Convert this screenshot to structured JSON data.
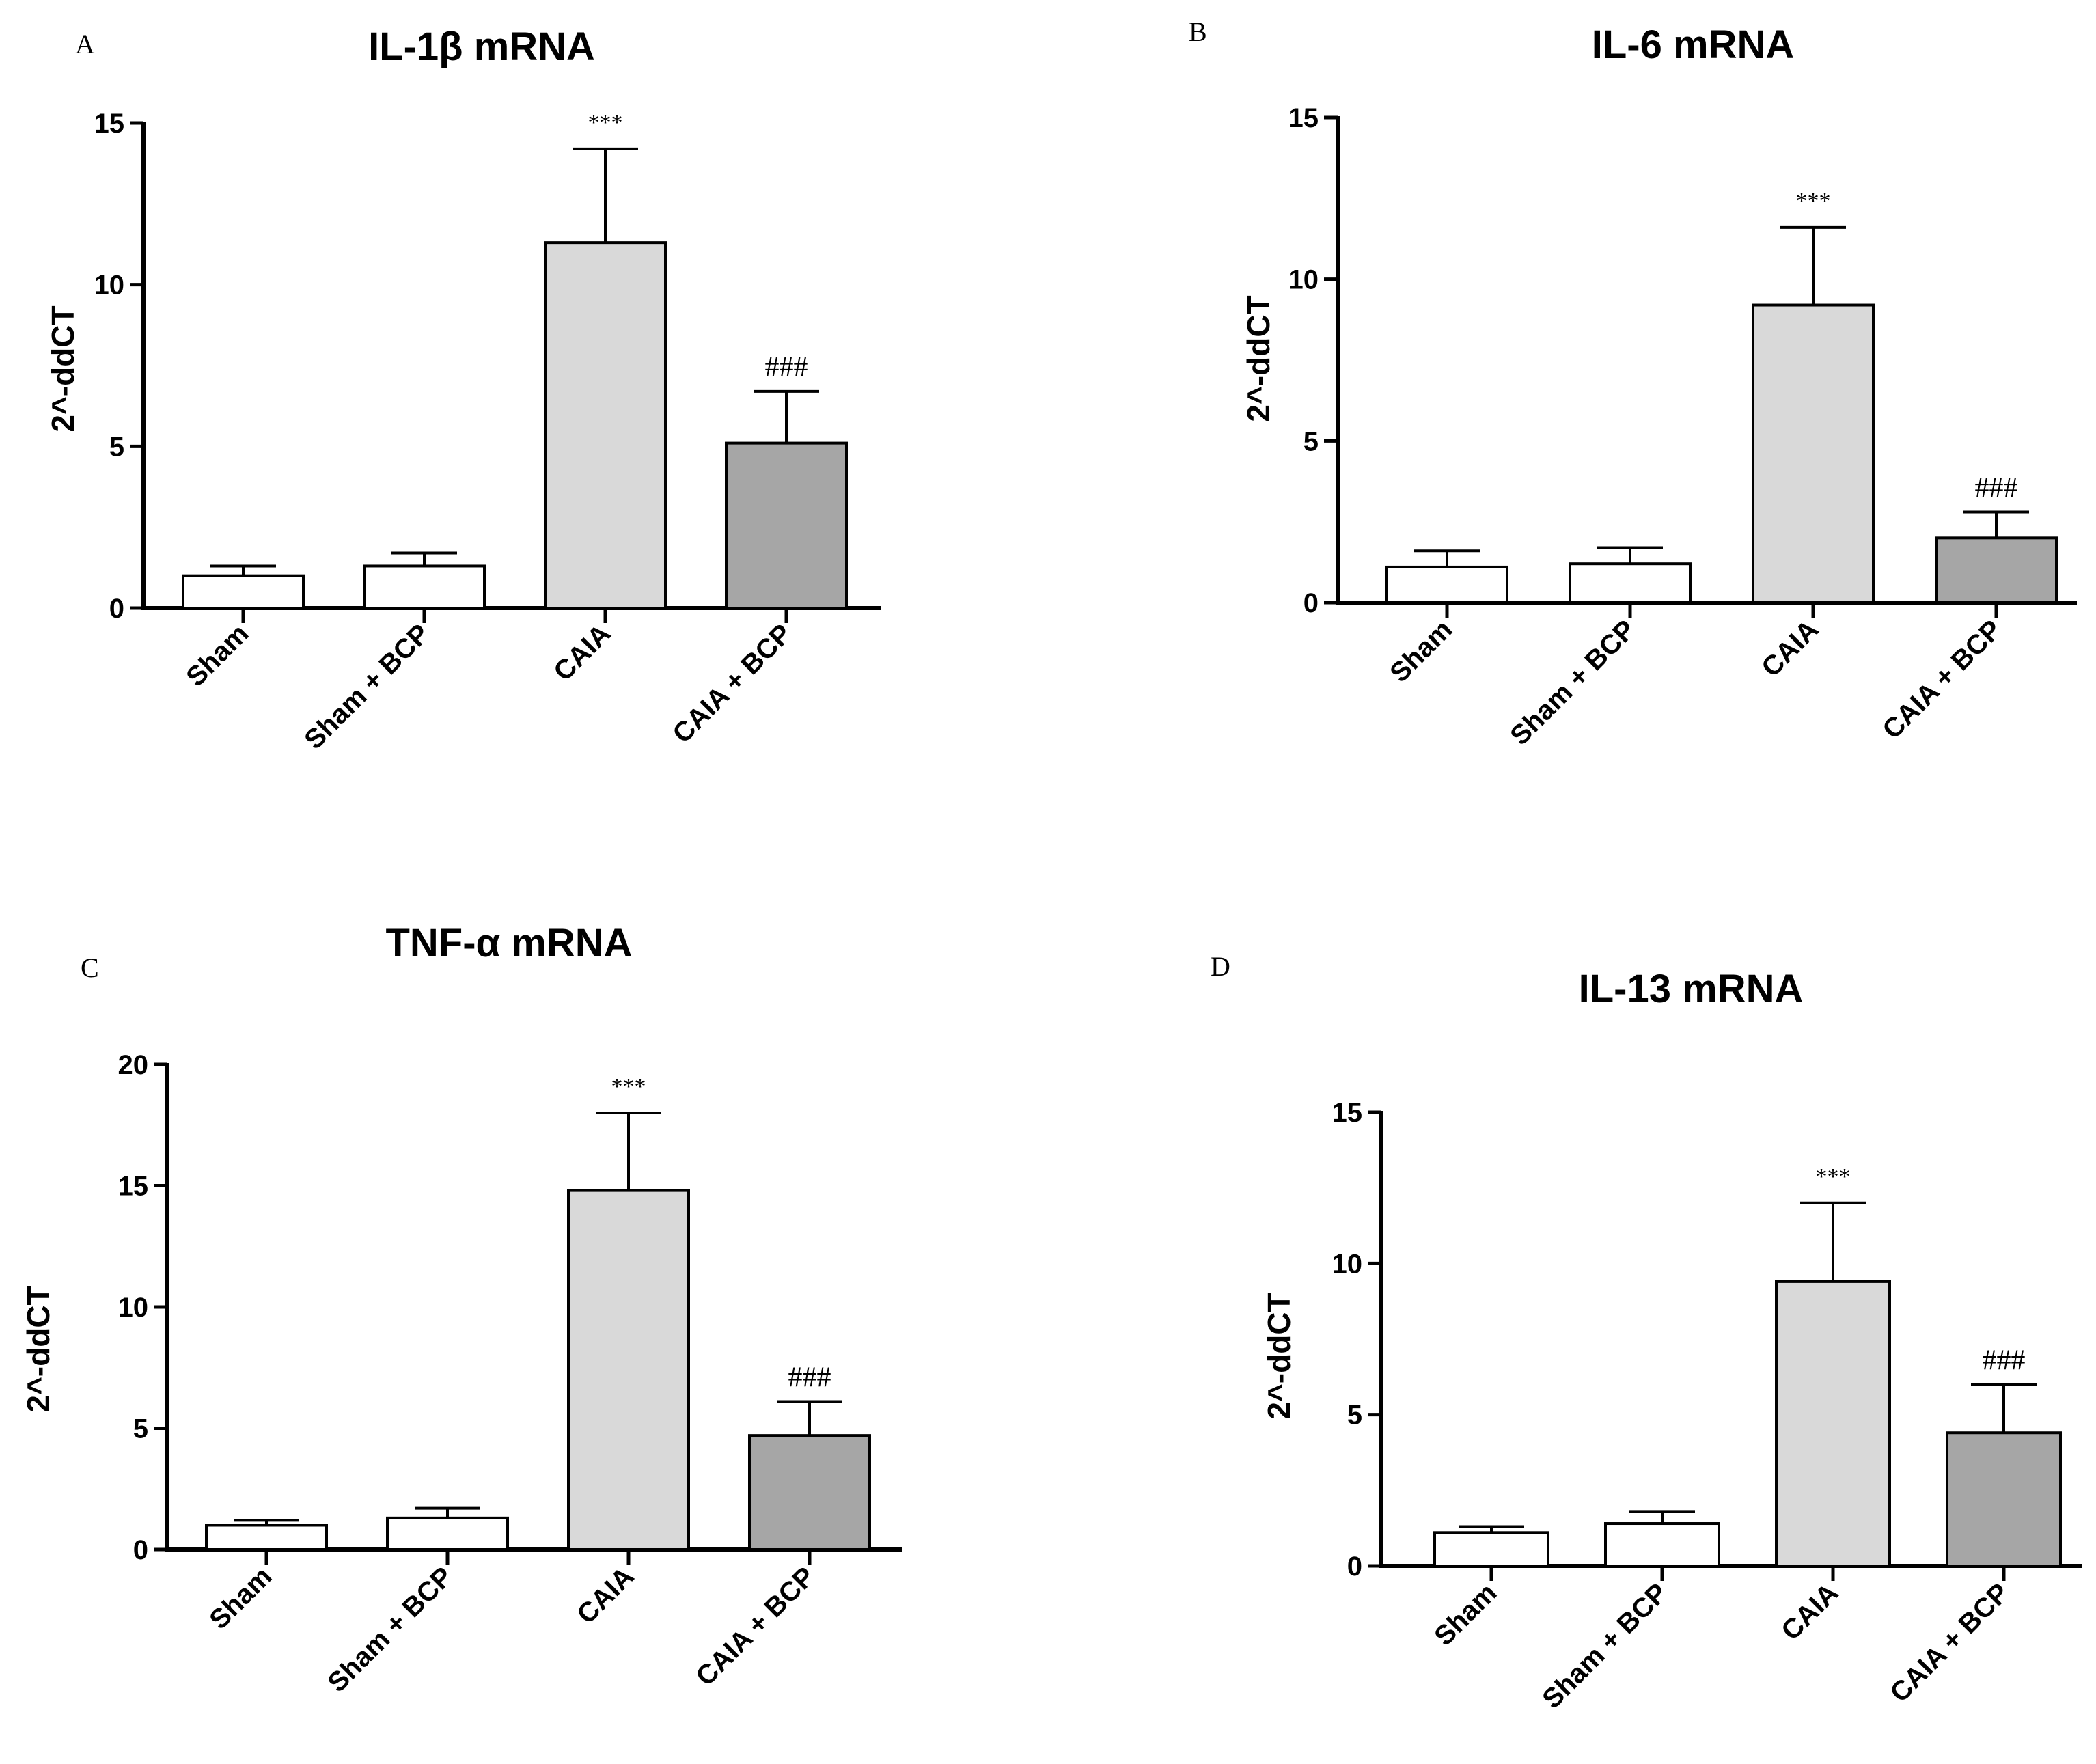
{
  "colors": {
    "white_bar": "#ffffff",
    "light_gray_bar": "#d9d9d9",
    "dark_gray_bar": "#a6a6a6",
    "axis": "#000000"
  },
  "chart_data": [
    {
      "type": "bar",
      "panel": "A",
      "title": "IL-1β mRNA",
      "ylabel": "2^-ddCT",
      "xlabel": "",
      "ylim": [
        0,
        15
      ],
      "yticks": [
        0,
        5,
        10,
        15
      ],
      "categories": [
        "Sham",
        "Sham + BCP",
        "CAIA",
        "CAIA + BCP"
      ],
      "values": [
        1.0,
        1.3,
        11.3,
        5.1
      ],
      "errors": [
        0.3,
        0.4,
        2.9,
        1.6
      ],
      "annotations": [
        "",
        "",
        "***",
        "###"
      ]
    },
    {
      "type": "bar",
      "panel": "B",
      "title": "IL-6 mRNA",
      "ylabel": "2^-ddCT",
      "xlabel": "",
      "ylim": [
        0,
        15
      ],
      "yticks": [
        0,
        5,
        10,
        15
      ],
      "categories": [
        "Sham",
        "Sham + BCP",
        "CAIA",
        "CAIA + BCP"
      ],
      "values": [
        1.1,
        1.2,
        9.2,
        2.0
      ],
      "errors": [
        0.5,
        0.5,
        2.4,
        0.8
      ],
      "annotations": [
        "",
        "",
        "***",
        "###"
      ]
    },
    {
      "type": "bar",
      "panel": "C",
      "title": "TNF-α mRNA",
      "ylabel": "2^-ddCT",
      "xlabel": "",
      "ylim": [
        0,
        20
      ],
      "yticks": [
        0,
        5,
        10,
        15,
        20
      ],
      "categories": [
        "Sham",
        "Sham + BCP",
        "CAIA",
        "CAIA + BCP"
      ],
      "values": [
        1.0,
        1.3,
        14.8,
        4.7
      ],
      "errors": [
        0.2,
        0.4,
        3.2,
        1.4
      ],
      "annotations": [
        "",
        "",
        "***",
        "###"
      ]
    },
    {
      "type": "bar",
      "panel": "D",
      "title": "IL-13 mRNA",
      "ylabel": "2^-ddCT",
      "xlabel": "",
      "ylim": [
        0,
        15
      ],
      "yticks": [
        0,
        5,
        10,
        15
      ],
      "categories": [
        "Sham",
        "Sham + BCP",
        "CAIA",
        "CAIA + BCP"
      ],
      "values": [
        1.1,
        1.4,
        9.4,
        4.4
      ],
      "errors": [
        0.2,
        0.4,
        2.6,
        1.6
      ],
      "annotations": [
        "",
        "",
        "***",
        "###"
      ]
    }
  ]
}
